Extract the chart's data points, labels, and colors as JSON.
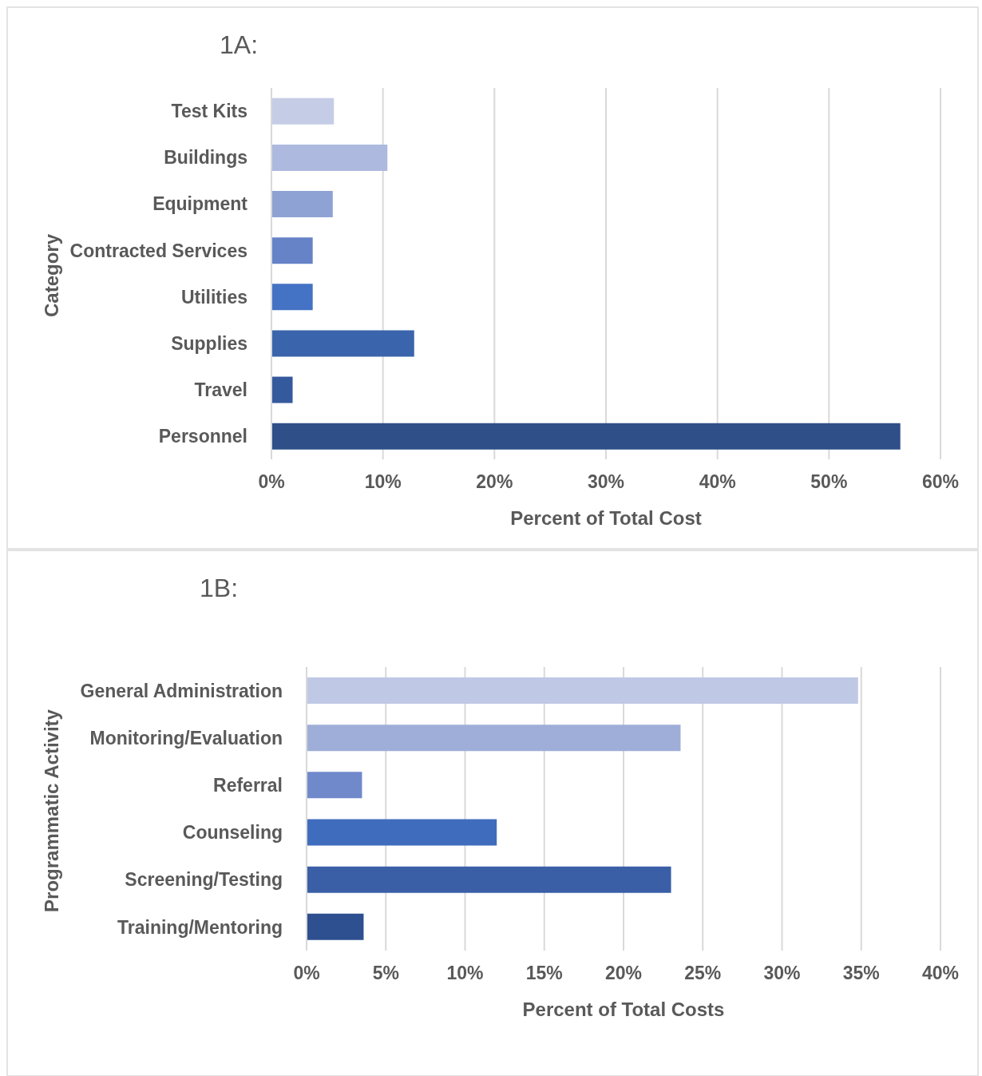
{
  "chart_data": [
    {
      "type": "bar",
      "title": "1A:",
      "orientation": "horizontal",
      "categories": [
        "Test Kits",
        "Buildings",
        "Equipment",
        "Contracted Services",
        "Utilities",
        "Supplies",
        "Travel",
        "Personnel"
      ],
      "values": [
        5.6,
        10.4,
        5.5,
        3.7,
        3.7,
        12.8,
        1.9,
        56.4
      ],
      "colors": [
        "#c5cce6",
        "#adb9de",
        "#8fa2d4",
        "#6683c7",
        "#4472c4",
        "#3a64ac",
        "#35599d",
        "#2e4f88"
      ],
      "xlim": [
        0,
        60
      ],
      "xticks": [
        {
          "value": 0,
          "label": "0%"
        },
        {
          "value": 10,
          "label": "10%"
        },
        {
          "value": 20,
          "label": "20%"
        },
        {
          "value": 30,
          "label": "30%"
        },
        {
          "value": 40,
          "label": "40%"
        },
        {
          "value": 50,
          "label": "50%"
        },
        {
          "value": 60,
          "label": "60%"
        }
      ],
      "xlabel": "Percent of Total Cost",
      "ylabel": "Category",
      "grid": "x",
      "legend": false
    },
    {
      "type": "bar",
      "title": "1B:",
      "orientation": "horizontal",
      "categories": [
        "General Administration",
        "Monitoring/Evaluation",
        "Referral",
        "Counseling",
        "Screening/Testing",
        "Training/Mentoring"
      ],
      "values": [
        34.8,
        23.6,
        3.5,
        12.0,
        23.0,
        3.6
      ],
      "colors": [
        "#bfc9e5",
        "#9eaed8",
        "#6f89cb",
        "#3f6cbc",
        "#3a5fa7",
        "#2e5090"
      ],
      "xlim": [
        0,
        40
      ],
      "xticks": [
        {
          "value": 0,
          "label": "0%"
        },
        {
          "value": 5,
          "label": "5%"
        },
        {
          "value": 10,
          "label": "10%"
        },
        {
          "value": 15,
          "label": "15%"
        },
        {
          "value": 20,
          "label": "20%"
        },
        {
          "value": 25,
          "label": "25%"
        },
        {
          "value": 30,
          "label": "30%"
        },
        {
          "value": 35,
          "label": "35%"
        },
        {
          "value": 40,
          "label": "40%"
        }
      ],
      "xlabel": "Percent of Total Costs",
      "ylabel": "Programmatic Activity",
      "grid": "x",
      "legend": false
    }
  ]
}
